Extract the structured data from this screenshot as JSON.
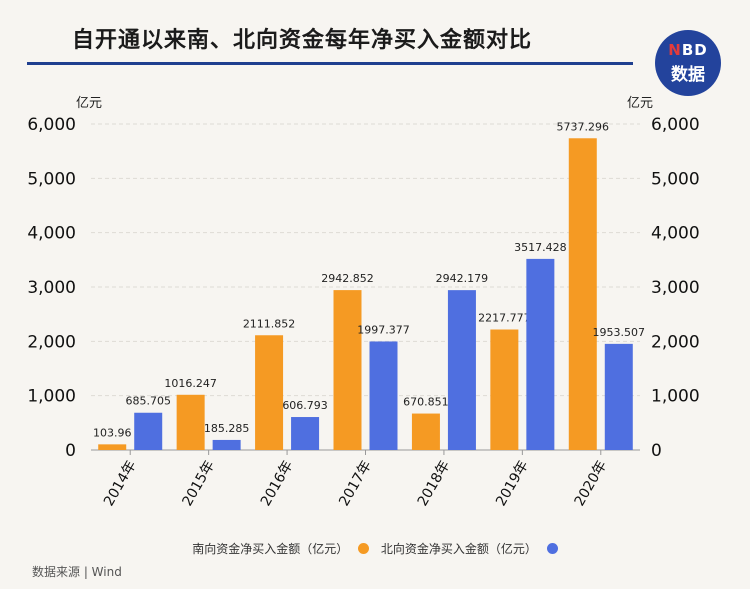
{
  "header": {
    "title": "自开通以来南、北向资金每年净买入金额对比",
    "logo_top": "NBD",
    "logo_bottom": "数据"
  },
  "footer": {
    "source": "数据来源 | Wind"
  },
  "colors": {
    "south": "#f59a23",
    "north": "#4f6fe0",
    "title_rule": "#1f3f8f"
  },
  "chart_data": {
    "type": "bar",
    "title": "自开通以来南、北向资金每年净买入金额对比",
    "categories": [
      "2014年",
      "2015年",
      "2016年",
      "2017年",
      "2018年",
      "2019年",
      "2020年"
    ],
    "series": [
      {
        "name": "南向资金净买入金额（亿元）",
        "values": [
          103.96,
          1016.247,
          2111.852,
          2942.852,
          670.851,
          2217.777,
          5737.296
        ],
        "labels": [
          "103.96",
          "1016.247",
          "2111.852",
          "2942.852",
          "670.851",
          "2217.777",
          "5737.296"
        ]
      },
      {
        "name": "北向资金净买入金额（亿元）",
        "values": [
          685.705,
          185.285,
          606.793,
          1997.377,
          2942.179,
          3517.428,
          1953.507
        ],
        "labels": [
          "685.705",
          "185.285",
          "606.793",
          "1997.377",
          "2942.179",
          "3517.428",
          "1953.507"
        ]
      }
    ],
    "ylabel_left": "亿元",
    "ylabel_right": "亿元",
    "ylim": [
      0,
      6000
    ],
    "yticks": [
      0,
      1000,
      2000,
      3000,
      4000,
      5000,
      6000
    ],
    "ytick_labels": [
      "0",
      "1,000",
      "2,000",
      "3,000",
      "4,000",
      "5,000",
      "6,000"
    ],
    "grid": true,
    "legend_position": "bottom"
  }
}
